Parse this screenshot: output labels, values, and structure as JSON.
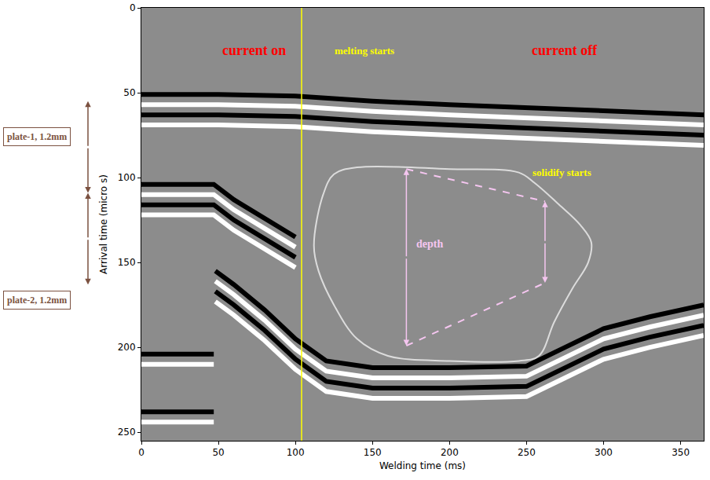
{
  "chart_data": {
    "type": "line",
    "xlabel": "Welding time (ms)",
    "ylabel": "Arrival time (micro s)",
    "xlim": [
      0,
      365
    ],
    "ylim": [
      255,
      0
    ],
    "xticks": [
      0,
      50,
      100,
      150,
      200,
      250,
      300,
      350
    ],
    "yticks": [
      0,
      50,
      100,
      150,
      200,
      250
    ],
    "grid": false,
    "series": [
      {
        "color": "#000000",
        "x": [
          0,
          50,
          100,
          150,
          200,
          250,
          300,
          365
        ],
        "values": [
          51,
          51,
          52,
          55,
          57,
          59,
          61,
          63
        ]
      },
      {
        "color": "#ffffff",
        "x": [
          0,
          50,
          100,
          150,
          200,
          250,
          300,
          365
        ],
        "values": [
          57,
          57,
          58,
          61,
          63,
          65,
          67,
          69
        ]
      },
      {
        "color": "#000000",
        "x": [
          0,
          50,
          100,
          150,
          200,
          250,
          300,
          365
        ],
        "values": [
          63,
          63,
          64,
          67,
          69,
          71,
          73,
          75
        ]
      },
      {
        "color": "#ffffff",
        "x": [
          0,
          50,
          100,
          150,
          200,
          250,
          300,
          365
        ],
        "values": [
          69,
          69,
          70,
          73,
          75,
          77,
          79,
          81
        ]
      },
      {
        "color": "#000000",
        "x": [
          0,
          47,
          60,
          80,
          100
        ],
        "values": [
          104,
          104,
          113,
          124,
          135
        ]
      },
      {
        "color": "#ffffff",
        "x": [
          0,
          47,
          60,
          80,
          100
        ],
        "values": [
          110,
          110,
          119,
          130,
          141
        ]
      },
      {
        "color": "#000000",
        "x": [
          0,
          47,
          60,
          80,
          100
        ],
        "values": [
          116,
          116,
          125,
          136,
          147
        ]
      },
      {
        "color": "#ffffff",
        "x": [
          0,
          47,
          60,
          80,
          100
        ],
        "values": [
          122,
          122,
          131,
          142,
          153
        ]
      },
      {
        "color": "#000000",
        "x": [
          0,
          47
        ],
        "values": [
          204,
          204
        ]
      },
      {
        "color": "#ffffff",
        "x": [
          0,
          47
        ],
        "values": [
          210,
          210
        ]
      },
      {
        "color": "#000000",
        "x": [
          0,
          47
        ],
        "values": [
          238,
          238
        ]
      },
      {
        "color": "#ffffff",
        "x": [
          0,
          47
        ],
        "values": [
          244,
          244
        ]
      },
      {
        "color": "#000000",
        "x": [
          48,
          60,
          80,
          100,
          120,
          150,
          200,
          250,
          275,
          300,
          330,
          365
        ],
        "values": [
          155,
          163,
          178,
          195,
          208,
          212,
          212,
          211,
          200,
          189,
          182,
          175
        ]
      },
      {
        "color": "#ffffff",
        "x": [
          48,
          60,
          80,
          100,
          120,
          150,
          200,
          250,
          275,
          300,
          330,
          365
        ],
        "values": [
          161,
          169,
          184,
          201,
          214,
          218,
          218,
          217,
          206,
          195,
          188,
          181
        ]
      },
      {
        "color": "#000000",
        "x": [
          48,
          60,
          80,
          100,
          120,
          150,
          200,
          250,
          275,
          300,
          330,
          365
        ],
        "values": [
          167,
          175,
          190,
          207,
          220,
          224,
          224,
          223,
          212,
          201,
          194,
          187
        ]
      },
      {
        "color": "#ffffff",
        "x": [
          48,
          60,
          80,
          100,
          120,
          150,
          200,
          250,
          275,
          300,
          330,
          365
        ],
        "values": [
          173,
          181,
          196,
          213,
          226,
          230,
          230,
          229,
          218,
          207,
          200,
          193
        ]
      }
    ],
    "melt_pool_boundary": {
      "color": "#dcdcdc",
      "x": [
        112,
        118,
        125,
        140,
        200,
        245,
        255,
        270,
        285,
        292,
        290,
        280,
        268,
        258,
        245,
        200,
        160,
        140,
        125,
        115,
        112
      ],
      "values": [
        140,
        110,
        98,
        94,
        95,
        97,
        103,
        115,
        128,
        138,
        150,
        165,
        185,
        205,
        208,
        208,
        205,
        195,
        175,
        155,
        140
      ]
    },
    "vline": {
      "x": 104,
      "color": "#ffff00"
    },
    "labels": [
      {
        "text": "current on",
        "x": 73,
        "y": 25,
        "color": "#ff0000"
      },
      {
        "text": "melting starts",
        "x": 145,
        "y": 25,
        "color": "#ffff00"
      },
      {
        "text": "current off",
        "x": 275,
        "y": 25,
        "color": "#ff0000"
      },
      {
        "text": "solidify starts",
        "x": 273,
        "y": 97,
        "color": "#ffff00"
      }
    ],
    "depth": {
      "text": "depth",
      "x": 187,
      "y": 139,
      "color": "#f5c6f0",
      "line_style": "dash",
      "lines": [
        {
          "x": [
            172,
            262
          ],
          "values": [
            95,
            114
          ]
        },
        {
          "x": [
            172,
            262
          ],
          "values": [
            199,
            162
          ]
        }
      ],
      "arrows": [
        {
          "x": 172,
          "span": [
            95,
            199
          ]
        },
        {
          "x": 262,
          "span": [
            114,
            162
          ]
        }
      ]
    },
    "plates": {
      "color": "#7b5140",
      "items": [
        {
          "text": "plate-1, 1.2mm",
          "y": 76,
          "span": [
            55,
            109
          ]
        },
        {
          "text": "plate-2, 1.2mm",
          "y": 172,
          "span": [
            109,
            163
          ]
        }
      ]
    }
  }
}
